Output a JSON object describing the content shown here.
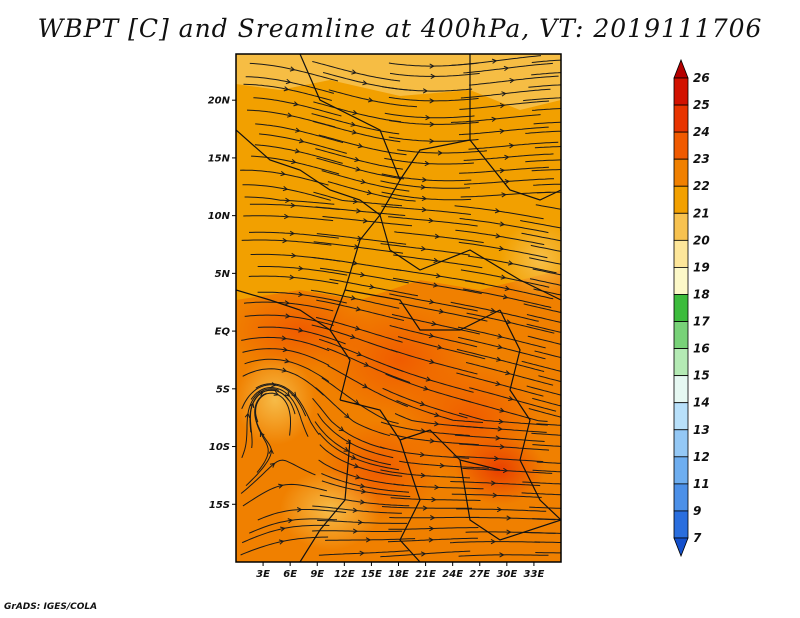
{
  "title": "WBPT [C] and Sreamline at 400hPa, VT: 2019111706",
  "footer": "GrADS: IGES/COLA",
  "map": {
    "lon_range": [
      0,
      36
    ],
    "lat_range": [
      -20,
      24
    ],
    "lat_ticks": [
      {
        "value": 20,
        "label": "20N"
      },
      {
        "value": 15,
        "label": "15N"
      },
      {
        "value": 10,
        "label": "10N"
      },
      {
        "value": 5,
        "label": "5N"
      },
      {
        "value": 0,
        "label": "EQ"
      },
      {
        "value": -5,
        "label": "5S"
      },
      {
        "value": -10,
        "label": "10S"
      },
      {
        "value": -15,
        "label": "15S"
      }
    ],
    "lon_ticks": [
      {
        "value": 3,
        "label": "3E"
      },
      {
        "value": 6,
        "label": "6E"
      },
      {
        "value": 9,
        "label": "9E"
      },
      {
        "value": 12,
        "label": "12E"
      },
      {
        "value": 15,
        "label": "15E"
      },
      {
        "value": 18,
        "label": "18E"
      },
      {
        "value": 21,
        "label": "21E"
      },
      {
        "value": 24,
        "label": "24E"
      },
      {
        "value": 27,
        "label": "27E"
      },
      {
        "value": 30,
        "label": "30E"
      },
      {
        "value": 33,
        "label": "33E"
      }
    ]
  },
  "colorbar": {
    "labels": [
      "26",
      "25",
      "24",
      "23",
      "22",
      "21",
      "20",
      "19",
      "18",
      "17",
      "16",
      "15",
      "14",
      "13",
      "12",
      "11",
      "9",
      "7"
    ],
    "colors": [
      "#b40000",
      "#d21200",
      "#e83400",
      "#f05a00",
      "#f08000",
      "#f2a000",
      "#f7c250",
      "#fde69a",
      "#fcf8c8",
      "#3cbc3c",
      "#78d278",
      "#b4eab4",
      "#e6f8f2",
      "#b8e0fa",
      "#94c8f5",
      "#6eaef0",
      "#4c90e8",
      "#2a6ede",
      "#1450cc"
    ]
  }
}
